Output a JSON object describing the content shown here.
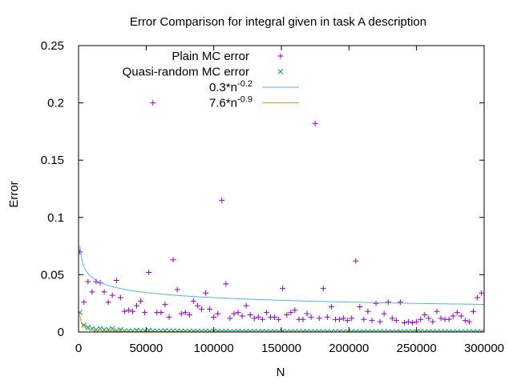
{
  "chart_data": {
    "type": "scatter",
    "title": "Error Comparison for integral given in task A description",
    "xlabel": "N",
    "ylabel": "Error",
    "xlim": [
      0,
      300000
    ],
    "ylim": [
      0,
      0.25
    ],
    "xticks": [
      "0",
      "50000",
      "100000",
      "150000",
      "200000",
      "250000",
      "300000"
    ],
    "yticks": [
      "0",
      "0.05",
      "0.1",
      "0.15",
      "0.2",
      "0.25"
    ],
    "grid": false,
    "legend_position": "top-right",
    "series": [
      {
        "name": "Plain MC error",
        "style": "points",
        "marker": "+",
        "color": "#9400d3",
        "x": [
          1000,
          4000,
          7000,
          10000,
          13000,
          16000,
          19000,
          22000,
          25000,
          28000,
          31000,
          34000,
          37000,
          40000,
          43000,
          46000,
          49000,
          52000,
          55000,
          58000,
          61000,
          64000,
          67000,
          70000,
          73000,
          76000,
          79000,
          82000,
          85000,
          88000,
          91000,
          94000,
          97000,
          100000,
          103000,
          106000,
          109000,
          112000,
          115000,
          118000,
          121000,
          124000,
          127000,
          130000,
          133000,
          136000,
          139000,
          142000,
          145000,
          148000,
          151000,
          154000,
          157000,
          160000,
          163000,
          166000,
          169000,
          172000,
          175000,
          178000,
          181000,
          184000,
          187000,
          190000,
          193000,
          196000,
          199000,
          202000,
          205000,
          208000,
          211000,
          214000,
          217000,
          220000,
          223000,
          226000,
          229000,
          232000,
          235000,
          238000,
          241000,
          244000,
          247000,
          250000,
          253000,
          256000,
          259000,
          262000,
          265000,
          268000,
          271000,
          274000,
          277000,
          280000,
          283000,
          286000,
          289000,
          292000,
          295000,
          298000
        ],
        "y": [
          0.07,
          0.026,
          0.044,
          0.035,
          0.044,
          0.043,
          0.035,
          0.026,
          0.032,
          0.045,
          0.03,
          0.018,
          0.019,
          0.018,
          0.023,
          0.027,
          0.017,
          0.052,
          0.2,
          0.017,
          0.017,
          0.024,
          0.013,
          0.063,
          0.037,
          0.016,
          0.017,
          0.015,
          0.027,
          0.023,
          0.02,
          0.034,
          0.02,
          0.013,
          0.016,
          0.115,
          0.042,
          0.012,
          0.016,
          0.017,
          0.014,
          0.023,
          0.015,
          0.012,
          0.013,
          0.011,
          0.017,
          0.013,
          0.013,
          0.011,
          0.038,
          0.015,
          0.017,
          0.019,
          0.011,
          0.011,
          0.016,
          0.013,
          0.182,
          0.012,
          0.038,
          0.013,
          0.022,
          0.011,
          0.011,
          0.012,
          0.01,
          0.012,
          0.062,
          0.022,
          0.011,
          0.018,
          0.01,
          0.025,
          0.009,
          0.016,
          0.026,
          0.012,
          0.01,
          0.026,
          0.008,
          0.009,
          0.008,
          0.009,
          0.011,
          0.015,
          0.012,
          0.009,
          0.018,
          0.012,
          0.011,
          0.011,
          0.014,
          0.017,
          0.014,
          0.01,
          0.009,
          0.018,
          0.03,
          0.034
        ],
        "y_note": ""
      },
      {
        "name": "Quasi-random MC error",
        "style": "points",
        "marker": "x",
        "color": "#009e73",
        "x": [
          1000,
          4000,
          7000,
          10000,
          13000,
          16000,
          19000,
          22000,
          25000,
          28000,
          31000,
          34000,
          37000,
          40000,
          43000,
          46000,
          49000,
          52000,
          55000,
          58000,
          61000,
          64000,
          67000,
          70000,
          73000,
          76000,
          79000,
          82000,
          85000,
          88000,
          91000,
          94000,
          97000,
          100000,
          103000,
          106000,
          109000,
          112000,
          115000,
          118000,
          121000,
          124000,
          127000,
          130000,
          133000,
          136000,
          139000,
          142000,
          145000,
          148000,
          151000,
          154000,
          157000,
          160000,
          163000,
          166000,
          169000,
          172000,
          175000,
          178000,
          181000,
          184000,
          187000,
          190000,
          193000,
          196000,
          199000,
          202000,
          205000,
          208000,
          211000,
          214000,
          217000,
          220000,
          223000,
          226000,
          229000,
          232000,
          235000,
          238000,
          241000,
          244000,
          247000,
          250000,
          253000,
          256000,
          259000,
          262000,
          265000,
          268000,
          271000,
          274000,
          277000,
          280000,
          283000,
          286000,
          289000,
          292000,
          295000,
          298000
        ],
        "y": [
          0.017,
          0.006,
          0.004,
          0.003,
          0.002,
          0.003,
          0.002,
          0.002,
          0.003,
          0.001,
          0.002,
          0.001,
          0.001,
          0.001,
          0.0015,
          0.001,
          0.001,
          0.0015,
          0.0008,
          0.001,
          0.0008,
          0.0012,
          0.0008,
          0.001,
          0.0007,
          0.0009,
          0.0006,
          0.0008,
          0.0006,
          0.0007,
          0.0005,
          0.0008,
          0.0005,
          0.0006,
          0.0007,
          0.0005,
          0.0006,
          0.0004,
          0.0005,
          0.0007,
          0.0004,
          0.0005,
          0.0004,
          0.0006,
          0.0004,
          0.0005,
          0.0004,
          0.0005,
          0.0003,
          0.0004,
          0.0005,
          0.0003,
          0.0004,
          0.0003,
          0.0004,
          0.0003,
          0.0005,
          0.0003,
          0.0004,
          0.0003,
          0.0003,
          0.0004,
          0.0002,
          0.0003,
          0.0004,
          0.0002,
          0.0003,
          0.0002,
          0.0003,
          0.0002,
          0.0003,
          0.0002,
          0.0003,
          0.0002,
          0.0003,
          0.0002,
          0.0002,
          0.0003,
          0.0002,
          0.0002,
          0.0003,
          0.0002,
          0.0002,
          0.0002,
          0.0003,
          0.0002,
          0.0002,
          0.0002,
          0.0002,
          0.0002,
          0.0002,
          0.0002,
          0.0002,
          0.0002,
          0.0002,
          0.0002,
          0.0002,
          0.0002,
          0.0002,
          0.0002
        ]
      },
      {
        "name": "0.3*n",
        "name_exponent": "-0.2",
        "style": "line",
        "color": "#56b4e9",
        "function": {
          "coef": 0.3,
          "exponent": -0.2
        }
      },
      {
        "name": "7.6*n",
        "name_exponent": "-0.9",
        "style": "line",
        "color": "#e69f00",
        "function": {
          "coef": 7.6,
          "exponent": -0.9
        }
      }
    ]
  }
}
